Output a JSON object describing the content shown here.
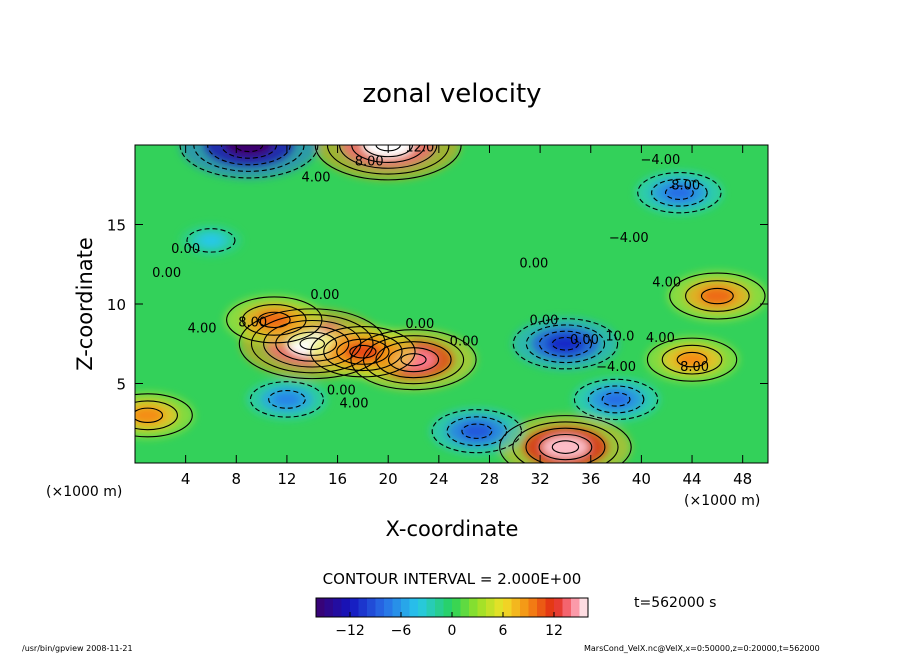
{
  "chart_data": {
    "type": "heatmap",
    "title": "zonal velocity",
    "xlabel": "X-coordinate",
    "ylabel": "Z-coordinate",
    "x_unit": "(×1000 m)",
    "y_unit": "(×1000 m)",
    "xlim": [
      0,
      50
    ],
    "ylim": [
      0,
      20
    ],
    "x_ticks": [
      "4",
      "8",
      "12",
      "16",
      "20",
      "24",
      "28",
      "32",
      "36",
      "40",
      "44",
      "48"
    ],
    "y_ticks": [
      "5",
      "10",
      "15"
    ],
    "contour_interval_text": "CONTOUR INTERVAL = 2.000E+00",
    "colorbar": {
      "range": [
        -16,
        16
      ],
      "tick_labels": [
        "−12",
        "−6",
        "0",
        "6",
        "12"
      ]
    },
    "time_label": "t=562000 s",
    "contour_labels": [
      "12.0",
      "8.00",
      "4.00",
      "−4.00",
      "8.00",
      "0.00",
      "0.00",
      "−4.00",
      "0.00",
      "4.00",
      "0.00",
      "8.00",
      "4.00",
      "0.00",
      "0.00",
      "0.00",
      "0.00",
      "10.0",
      "4.00",
      "8.00",
      "0.00",
      "4.00",
      "−4.00"
    ],
    "features": [
      {
        "x": 22,
        "z": 6.5,
        "value": 14
      },
      {
        "x": 14,
        "z": 7.5,
        "value": 17
      },
      {
        "x": 18,
        "z": 7,
        "value": 11
      },
      {
        "x": 11,
        "z": 9,
        "value": 10
      },
      {
        "x": 44,
        "z": 6.5,
        "value": 9
      },
      {
        "x": 46,
        "z": 10.5,
        "value": 10
      },
      {
        "x": 34,
        "z": 1,
        "value": 15
      },
      {
        "x": 1,
        "z": 3,
        "value": 9
      },
      {
        "x": 20,
        "z": 20,
        "value": 17
      },
      {
        "x": 9,
        "z": 20,
        "value": -16
      },
      {
        "x": 43,
        "z": 17,
        "value": -8
      },
      {
        "x": 34,
        "z": 7.5,
        "value": -11
      },
      {
        "x": 12,
        "z": 4,
        "value": -7
      },
      {
        "x": 27,
        "z": 2,
        "value": -9
      },
      {
        "x": 6,
        "z": 14,
        "value": -4
      },
      {
        "x": 38,
        "z": 4,
        "value": -8
      }
    ]
  },
  "footer": {
    "left": "/usr/bin/gpview  2008-11-21",
    "right": "MarsCond_VelX.nc@VelX,x=0:50000,z=0:20000,t=562000"
  }
}
